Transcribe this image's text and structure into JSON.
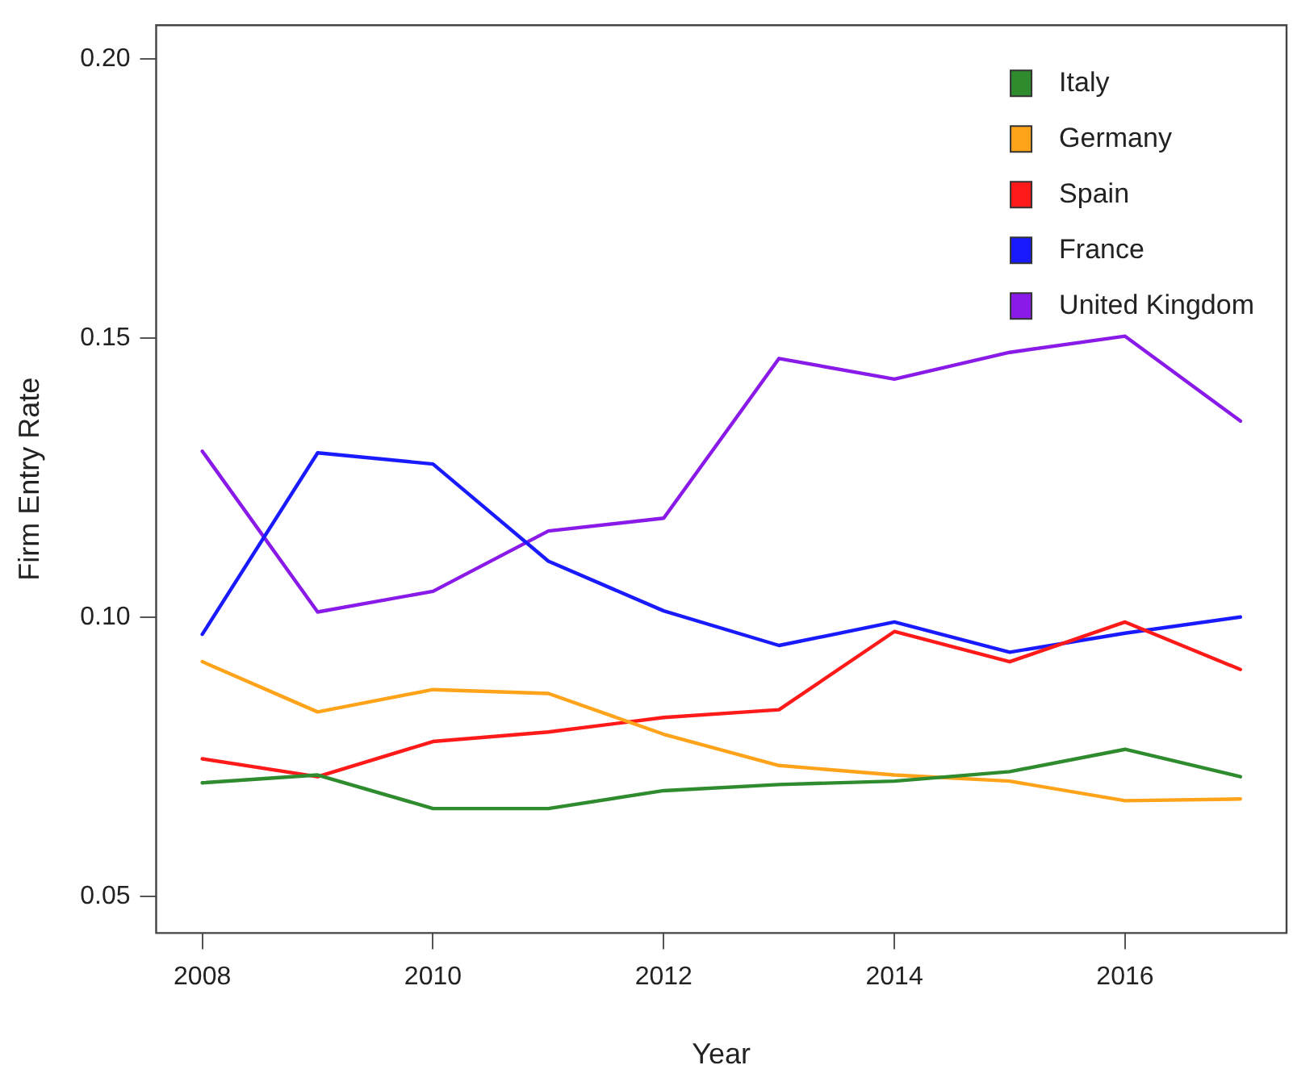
{
  "chart_data": {
    "type": "line",
    "xlabel": "Year",
    "ylabel": "Firm Entry Rate",
    "x": [
      2008,
      2009,
      2010,
      2011,
      2012,
      2013,
      2014,
      2015,
      2016,
      2017
    ],
    "series": [
      {
        "name": "Italy",
        "color": "#2e8b2e",
        "values": [
          0.0703,
          0.0717,
          0.0657,
          0.0657,
          0.0689,
          0.07,
          0.0706,
          0.0723,
          0.0763,
          0.0714
        ]
      },
      {
        "name": "Germany",
        "color": "#ffa31a",
        "values": [
          0.092,
          0.083,
          0.087,
          0.0863,
          0.079,
          0.0734,
          0.0717,
          0.0706,
          0.0671,
          0.0674
        ]
      },
      {
        "name": "Spain",
        "color": "#ff1a1a",
        "values": [
          0.0746,
          0.0714,
          0.0777,
          0.0794,
          0.082,
          0.0834,
          0.0974,
          0.092,
          0.0991,
          0.0906
        ]
      },
      {
        "name": "France",
        "color": "#1a1aff",
        "values": [
          0.0969,
          0.1294,
          0.1274,
          0.11,
          0.1011,
          0.0949,
          0.0991,
          0.0937,
          0.0971,
          0.1
        ]
      },
      {
        "name": "United Kingdom",
        "color": "#8a1ae8",
        "values": [
          0.1297,
          0.1009,
          0.1046,
          0.1154,
          0.1177,
          0.1463,
          0.1426,
          0.1474,
          0.1503,
          0.1351
        ]
      }
    ],
    "xlim": [
      2007.6,
      2017.4
    ],
    "ylim": [
      0.0434,
      0.206
    ],
    "xticks": [
      2008,
      2010,
      2012,
      2014,
      2016
    ],
    "yticks": [
      0.05,
      {
        "value": 0.1,
        "label": "0.10"
      },
      0.15,
      {
        "value": 0.2,
        "label": "0.20"
      }
    ],
    "grid": false,
    "legend": "top right",
    "marker": "none",
    "line_style": "solid"
  }
}
